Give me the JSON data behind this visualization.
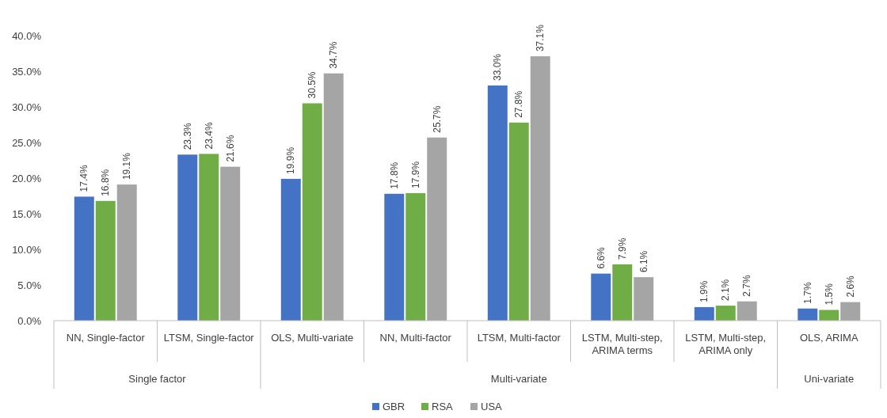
{
  "chart_data": {
    "type": "bar",
    "categories": [
      "NN, Single-factor",
      "LTSM, Single-factor",
      "OLS, Multi-variate",
      "NN, Multi-factor",
      "LTSM, Multi-factor",
      "LSTM, Multi-step, ARIMA terms",
      "LSTM, Multi-step, ARIMA only",
      "OLS, ARIMA"
    ],
    "annotations": [
      "Single factor",
      "Multi-variate",
      "Uni-variate"
    ],
    "series": [
      {
        "name": "GBR",
        "color": "#4472c4",
        "values": [
          17.4,
          23.3,
          19.9,
          17.8,
          33.0,
          6.6,
          1.9,
          1.7
        ],
        "value_labels": [
          "17.4%",
          "23.3%",
          "19.9%",
          "17.8%",
          "33.0%",
          "6.6%",
          "1.9%",
          "1.7%"
        ]
      },
      {
        "name": "RSA",
        "color": "#70ad47",
        "values": [
          16.8,
          23.4,
          30.5,
          17.9,
          27.8,
          7.9,
          2.1,
          1.5
        ],
        "value_labels": [
          "16.8%",
          "23.4%",
          "30.5%",
          "17.9%",
          "27.8%",
          "7.9%",
          "2.1%",
          "1.5%"
        ]
      },
      {
        "name": "USA",
        "color": "#a5a5a5",
        "values": [
          19.1,
          21.6,
          34.7,
          25.7,
          37.1,
          6.1,
          2.7,
          2.6
        ],
        "value_labels": [
          "19.1%",
          "21.6%",
          "34.7%",
          "25.7%",
          "37.1%",
          "6.1%",
          "2.7%",
          "2.6%"
        ]
      }
    ],
    "ylim": [
      0,
      40
    ],
    "yticks": [
      {
        "value": 0,
        "label": "0.0%"
      },
      {
        "value": 5,
        "label": "5.0%"
      },
      {
        "value": 10,
        "label": "10.0%"
      },
      {
        "value": 15,
        "label": "15.0%"
      },
      {
        "value": 20,
        "label": "20.0%"
      },
      {
        "value": 25,
        "label": "25.0%"
      },
      {
        "value": 30,
        "label": "30.0%"
      },
      {
        "value": 35,
        "label": "35.0%"
      },
      {
        "value": 40,
        "label": "40.0%"
      }
    ],
    "grid": false,
    "legend": "bottom"
  }
}
